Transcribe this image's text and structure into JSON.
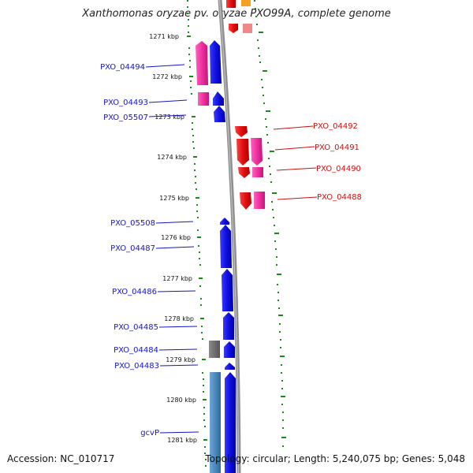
{
  "title": "Xanthomonas oryzae pv. oryzae PXO99A, complete genome",
  "accession": "Accession: NC_010717",
  "topology": "Topology: circular; Length: 5,240,075 bp; Genes: 5,048",
  "kbp_ticks": [
    "1271 kbp",
    "1272 kbp",
    "1273 kbp",
    "1274 kbp",
    "1275 kbp",
    "1276 kbp",
    "1277 kbp",
    "1278 kbp",
    "1279 kbp",
    "1280 kbp",
    "1281 kbp"
  ],
  "genes_left": [
    "PXO_04494",
    "PXO_04493",
    "PXO_05507",
    "PXO_05508",
    "PXO_04487",
    "PXO_04486",
    "PXO_04485",
    "PXO_04484",
    "PXO_04483",
    "gcvP"
  ],
  "genes_right": [
    "PXO_04492",
    "PXO_04491",
    "PXO_04490",
    "PXO_04488"
  ],
  "colors": {
    "forward_strand": "#1010e0",
    "reverse_strand": "#e01010",
    "pink": "#f030a0",
    "gray": "#707070",
    "steel": "#4a86b8",
    "backbone": "#909090",
    "tick_green": "#1a8a1a",
    "label_left": "#1515c8",
    "label_right": "#cc1111"
  }
}
